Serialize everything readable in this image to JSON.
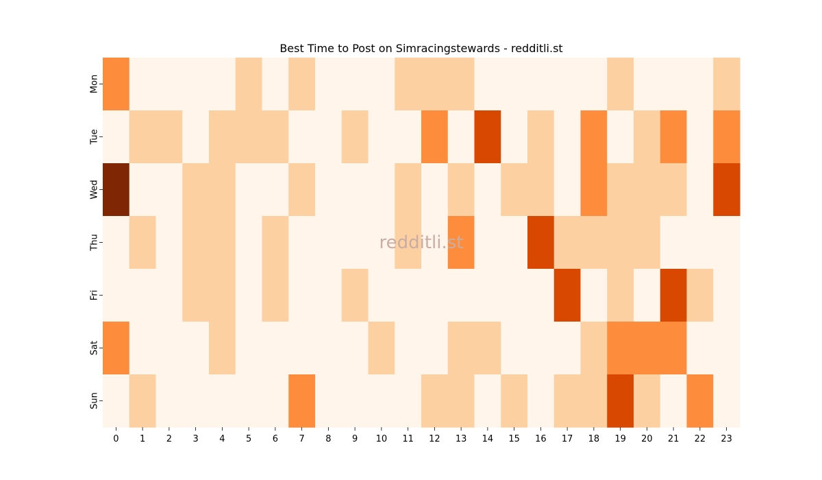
{
  "chart_data": {
    "type": "heatmap",
    "title": "Best Time to Post on Simracingstewards - redditli.st",
    "xlabel": "",
    "ylabel": "",
    "x_labels": [
      "0",
      "1",
      "2",
      "3",
      "4",
      "5",
      "6",
      "7",
      "8",
      "9",
      "10",
      "11",
      "12",
      "13",
      "14",
      "15",
      "16",
      "17",
      "18",
      "19",
      "20",
      "21",
      "22",
      "23"
    ],
    "y_labels": [
      "Mon",
      "Tue",
      "Wed",
      "Thu",
      "Fri",
      "Sat",
      "Sun"
    ],
    "values": [
      [
        2,
        0,
        0,
        0,
        0,
        1,
        0,
        1,
        0,
        0,
        0,
        1,
        1,
        1,
        0,
        0,
        0,
        0,
        0,
        1,
        0,
        0,
        0,
        1
      ],
      [
        0,
        1,
        1,
        0,
        1,
        1,
        1,
        0,
        0,
        1,
        0,
        0,
        2,
        0,
        3,
        0,
        1,
        0,
        2,
        0,
        1,
        2,
        0,
        2
      ],
      [
        4,
        0,
        0,
        1,
        1,
        0,
        0,
        1,
        0,
        0,
        0,
        1,
        0,
        1,
        0,
        1,
        1,
        0,
        2,
        1,
        1,
        1,
        0,
        3
      ],
      [
        0,
        1,
        0,
        1,
        1,
        0,
        1,
        0,
        0,
        0,
        0,
        1,
        0,
        2,
        0,
        0,
        3,
        1,
        1,
        1,
        1,
        0,
        0,
        0
      ],
      [
        0,
        0,
        0,
        1,
        1,
        0,
        1,
        0,
        0,
        1,
        0,
        0,
        0,
        0,
        0,
        0,
        0,
        3,
        0,
        1,
        0,
        3,
        1,
        0
      ],
      [
        2,
        0,
        0,
        0,
        1,
        0,
        0,
        0,
        0,
        0,
        1,
        0,
        0,
        1,
        1,
        0,
        0,
        0,
        1,
        2,
        2,
        2,
        0,
        0
      ],
      [
        0,
        1,
        0,
        0,
        0,
        0,
        0,
        2,
        0,
        0,
        0,
        0,
        1,
        1,
        0,
        1,
        0,
        1,
        1,
        3,
        1,
        0,
        2,
        0
      ]
    ],
    "colors": [
      "#fff5eb",
      "#fdd0a2",
      "#fd8d3c",
      "#d94801",
      "#7f2704"
    ],
    "colorscale": "Oranges",
    "colorbar": false,
    "grid": false,
    "watermark": "redditli.st"
  }
}
